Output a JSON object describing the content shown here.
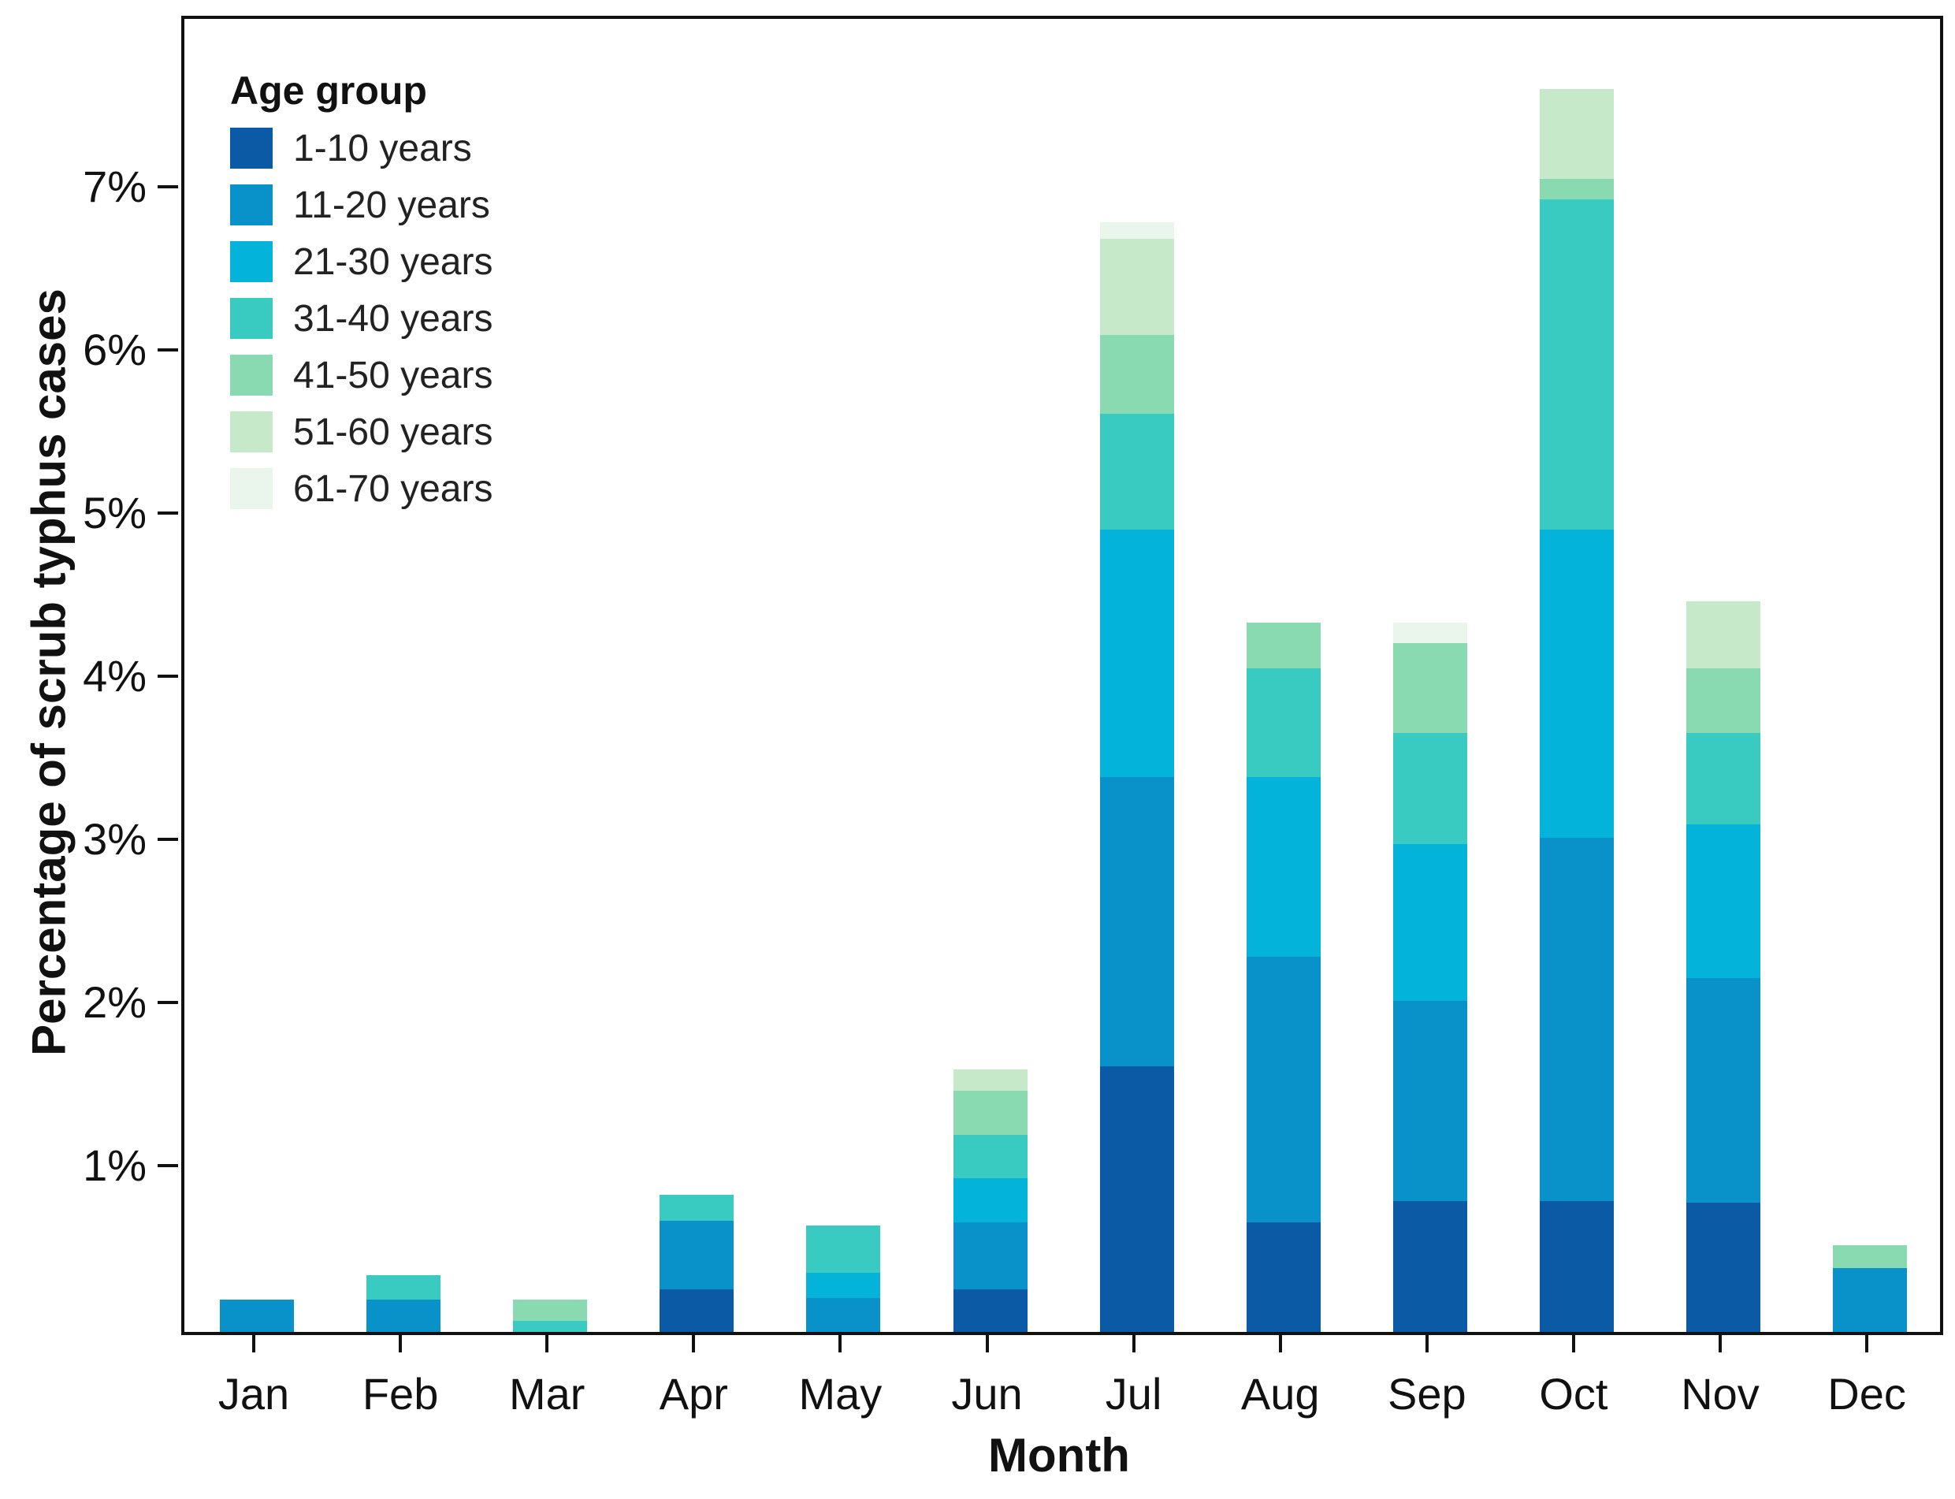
{
  "figure": {
    "y_axis_title": "Percentage of scrub typhus cases",
    "x_axis_title": "Month"
  },
  "legend": {
    "title": "Age group",
    "entries": [
      {
        "label": "1-10 years",
        "color": "#0a5aa5"
      },
      {
        "label": "11-20 years",
        "color": "#0991c9"
      },
      {
        "label": "21-30 years",
        "color": "#03b3da"
      },
      {
        "label": "31-40 years",
        "color": "#39cac1"
      },
      {
        "label": "41-50 years",
        "color": "#8adab1"
      },
      {
        "label": "51-60 years",
        "color": "#c6e9c9"
      },
      {
        "label": "61-70 years",
        "color": "#eaf6eb"
      }
    ]
  },
  "chart_data": {
    "type": "bar",
    "stacked": true,
    "title": "",
    "xlabel": "Month",
    "ylabel": "Percentage of scrub typhus cases",
    "categories": [
      "Jan",
      "Feb",
      "Mar",
      "Apr",
      "May",
      "Jun",
      "Jul",
      "Aug",
      "Sep",
      "Oct",
      "Nov",
      "Dec"
    ],
    "series": [
      {
        "name": "1-10 years",
        "color": "#0a5aa5",
        "values": [
          0,
          0,
          0,
          0.26,
          0,
          0.26,
          1.63,
          0.67,
          0.8,
          0.8,
          0.79,
          0
        ]
      },
      {
        "name": "11-20 years",
        "color": "#0991c9",
        "values": [
          0.2,
          0.2,
          0,
          0.42,
          0.21,
          0.41,
          1.77,
          1.63,
          1.23,
          2.23,
          1.38,
          0.39
        ]
      },
      {
        "name": "21-30 years",
        "color": "#03b3da",
        "values": [
          0,
          0,
          0,
          0,
          0.15,
          0.27,
          1.52,
          1.1,
          0.96,
          1.89,
          0.94,
          0
        ]
      },
      {
        "name": "31-40 years",
        "color": "#39cac1",
        "values": [
          0,
          0.15,
          0.07,
          0.16,
          0.29,
          0.27,
          0.71,
          0.67,
          0.68,
          2.02,
          0.56,
          0
        ]
      },
      {
        "name": "41-50 years",
        "color": "#8adab1",
        "values": [
          0,
          0,
          0.13,
          0,
          0,
          0.27,
          0.48,
          0.28,
          0.55,
          0.13,
          0.4,
          0.14
        ]
      },
      {
        "name": "51-60 years",
        "color": "#c6e9c9",
        "values": [
          0,
          0,
          0,
          0,
          0,
          0.13,
          0.59,
          0,
          0,
          0.55,
          0.41,
          0
        ]
      },
      {
        "name": "61-70 years",
        "color": "#eaf6eb",
        "values": [
          0,
          0,
          0,
          0,
          0,
          0,
          0.1,
          0,
          0.13,
          0,
          0,
          0
        ]
      }
    ],
    "totals": null,
    "y_ticks": [
      1,
      2,
      3,
      4,
      5,
      6,
      7
    ],
    "y_tick_labels": [
      "1%",
      "2%",
      "3%",
      "4%",
      "5%",
      "6%",
      "7%"
    ],
    "ylim": [
      0,
      8.05
    ],
    "grid": false,
    "legend_position": "top-left-inside"
  }
}
